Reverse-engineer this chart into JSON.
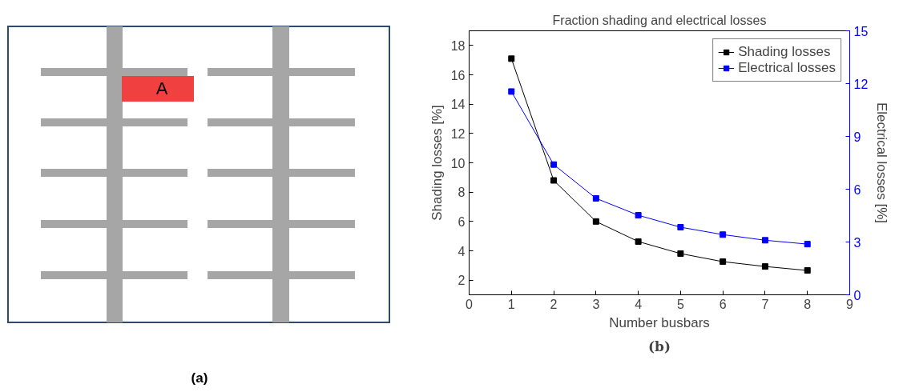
{
  "chart_data": [
    {
      "type": "other",
      "annotations": [
        "A",
        "(a)"
      ]
    },
    {
      "type": "line",
      "title": "Fraction shading and electrical losses",
      "xlabel": "Number busbars",
      "ylabel": "Shading losses [%]",
      "y2label": "Electrical losses [%]",
      "x": [
        1,
        2,
        3,
        4,
        5,
        6,
        7,
        8
      ],
      "series": [
        {
          "name": "Shading losses",
          "color": "#000000",
          "values": [
            17.1,
            8.8,
            6.0,
            4.63,
            3.81,
            3.26,
            2.93,
            2.66
          ]
        },
        {
          "name": "Electrical losses",
          "color": "#0000ff",
          "axis": "y2",
          "values": [
            11.55,
            7.4,
            5.48,
            4.52,
            3.84,
            3.42,
            3.1,
            2.88
          ]
        }
      ],
      "xlim": [
        0,
        9
      ],
      "xticks": [
        0,
        1,
        2,
        3,
        4,
        5,
        6,
        7,
        8,
        9
      ],
      "ylim": [
        1,
        19
      ],
      "yticks": [
        2,
        4,
        6,
        8,
        10,
        12,
        14,
        16,
        18
      ],
      "y2lim": [
        0,
        15
      ],
      "y2ticks": [
        0,
        3,
        6,
        9,
        12,
        15
      ],
      "legend": "top right",
      "marker": "square",
      "line_style": "solid",
      "grid": false,
      "annotations": [
        "(b)"
      ]
    }
  ]
}
